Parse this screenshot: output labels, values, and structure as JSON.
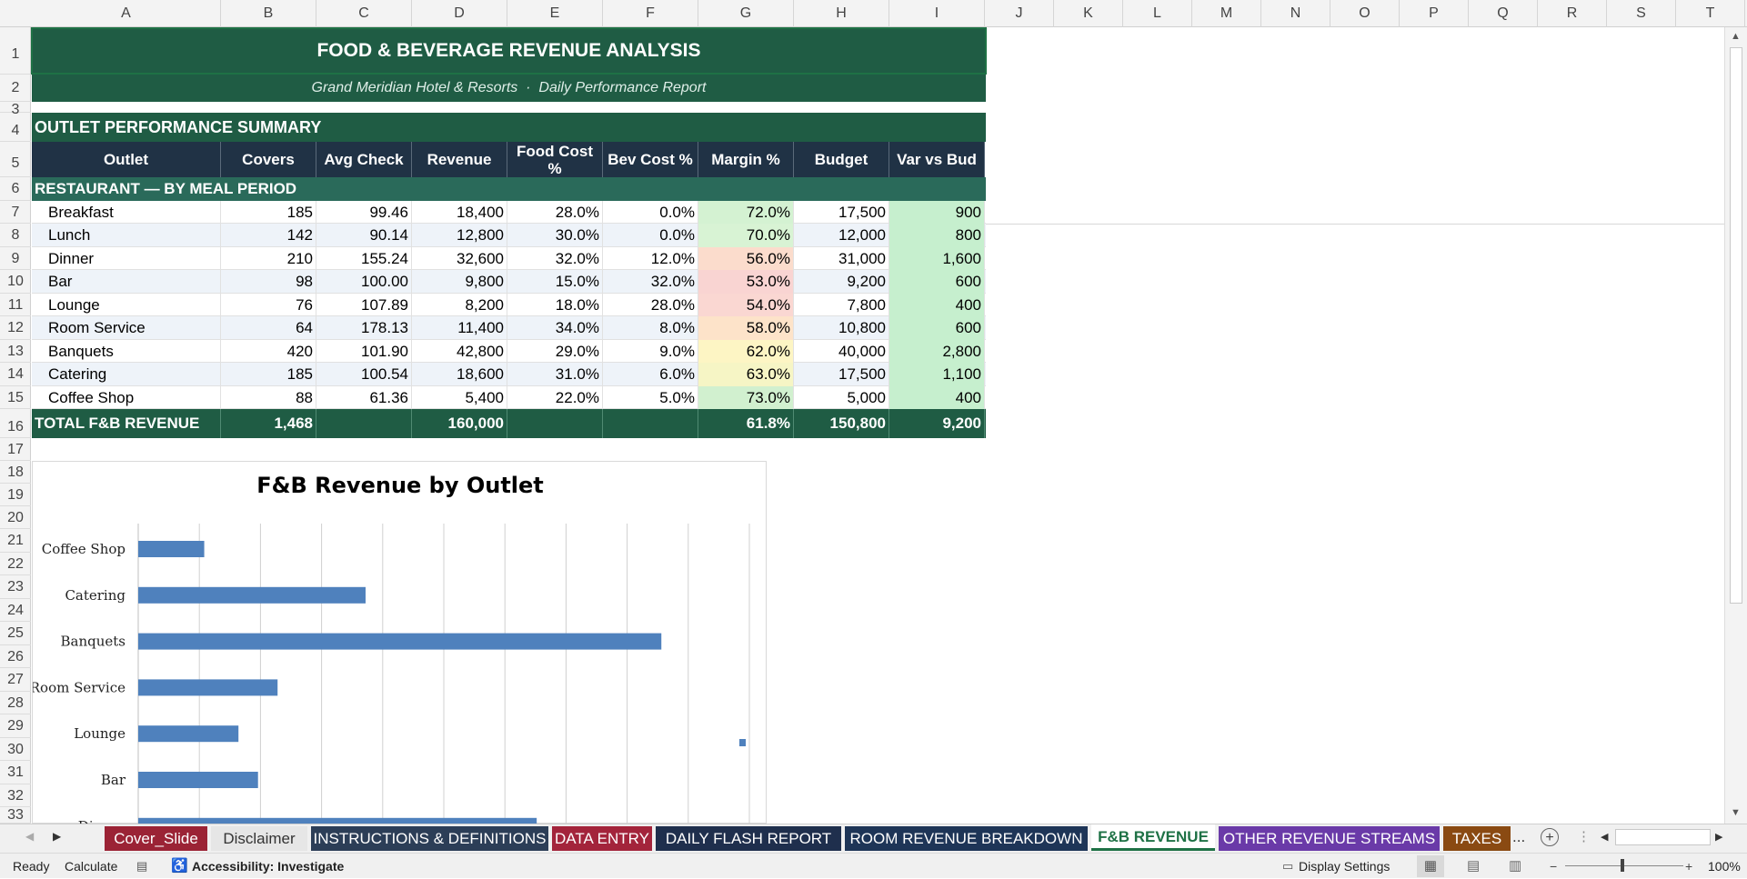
{
  "columns": [
    "A",
    "B",
    "C",
    "D",
    "E",
    "F",
    "G",
    "H",
    "I",
    "J",
    "K",
    "L",
    "M",
    "N",
    "O",
    "P",
    "Q",
    "R",
    "S",
    "T"
  ],
  "rows": [
    "1",
    "2",
    "3",
    "4",
    "5",
    "6",
    "7",
    "8",
    "9",
    "10",
    "11",
    "12",
    "13",
    "14",
    "15",
    "16",
    "17",
    "18",
    "19",
    "20",
    "21",
    "22",
    "23",
    "24",
    "25",
    "26",
    "27",
    "28",
    "29",
    "30",
    "31",
    "32",
    "33"
  ],
  "sheet": {
    "title": "FOOD & BEVERAGE REVENUE ANALYSIS",
    "subtitle": "Grand Meridian Hotel & Resorts  ·  Daily Performance Report",
    "section": "OUTLET PERFORMANCE SUMMARY",
    "headers": [
      "Outlet",
      "Covers",
      "Avg Check",
      "Revenue",
      "Food Cost %",
      "Bev Cost %",
      "Margin %",
      "Budget",
      "Var vs Bud"
    ],
    "group": "RESTAURANT — BY MEAL PERIOD",
    "data_rows": [
      {
        "outlet": "Breakfast",
        "covers": "185",
        "avg": "99.46",
        "revenue": "18,400",
        "food": "28.0%",
        "bev": "0.0%",
        "margin": "72.0%",
        "budget": "17,500",
        "var": "900",
        "margin_color": "#d4f2d2"
      },
      {
        "outlet": "Lunch",
        "covers": "142",
        "avg": "90.14",
        "revenue": "12,800",
        "food": "30.0%",
        "bev": "0.0%",
        "margin": "70.0%",
        "budget": "12,000",
        "var": "800",
        "margin_color": "#d8f3d4"
      },
      {
        "outlet": "Dinner",
        "covers": "210",
        "avg": "155.24",
        "revenue": "32,600",
        "food": "32.0%",
        "bev": "12.0%",
        "margin": "56.0%",
        "budget": "31,000",
        "var": "1,600",
        "margin_color": "#fbdccc"
      },
      {
        "outlet": "Bar",
        "covers": "98",
        "avg": "100.00",
        "revenue": "9,800",
        "food": "15.0%",
        "bev": "32.0%",
        "margin": "53.0%",
        "budget": "9,200",
        "var": "600",
        "margin_color": "#f9d4d2"
      },
      {
        "outlet": "Lounge",
        "covers": "76",
        "avg": "107.89",
        "revenue": "8,200",
        "food": "18.0%",
        "bev": "28.0%",
        "margin": "54.0%",
        "budget": "7,800",
        "var": "400",
        "margin_color": "#fad7d2"
      },
      {
        "outlet": "Room Service",
        "covers": "64",
        "avg": "178.13",
        "revenue": "11,400",
        "food": "34.0%",
        "bev": "8.0%",
        "margin": "58.0%",
        "budget": "10,800",
        "var": "600",
        "margin_color": "#fde3c9"
      },
      {
        "outlet": "Banquets",
        "covers": "420",
        "avg": "101.90",
        "revenue": "42,800",
        "food": "29.0%",
        "bev": "9.0%",
        "margin": "62.0%",
        "budget": "40,000",
        "var": "2,800",
        "margin_color": "#fdf5c4"
      },
      {
        "outlet": "Catering",
        "covers": "185",
        "avg": "100.54",
        "revenue": "18,600",
        "food": "31.0%",
        "bev": "6.0%",
        "margin": "63.0%",
        "budget": "17,500",
        "var": "1,100",
        "margin_color": "#f6f5c5"
      },
      {
        "outlet": "Coffee Shop",
        "covers": "88",
        "avg": "61.36",
        "revenue": "5,400",
        "food": "22.0%",
        "bev": "5.0%",
        "margin": "73.0%",
        "budget": "5,000",
        "var": "400",
        "margin_color": "#d1f0cf"
      }
    ],
    "total": {
      "label": "TOTAL F&B REVENUE",
      "covers": "1,468",
      "revenue": "160,000",
      "margin": "61.8%",
      "budget": "150,800",
      "var": "9,200"
    },
    "var_color": "#c6efce"
  },
  "chart_data": {
    "type": "bar",
    "orientation": "horizontal",
    "title": "F&B Revenue by Outlet",
    "categories": [
      "Coffee Shop",
      "Catering",
      "Banquets",
      "Room Service",
      "Lounge",
      "Bar",
      "Dinner"
    ],
    "values": [
      5400,
      18600,
      42800,
      11400,
      8200,
      9800,
      32600
    ],
    "xlim": [
      0,
      50000
    ],
    "grid": true,
    "color": "#4f81bd"
  },
  "tabs": [
    {
      "label": "Cover_Slide",
      "bg": "#9b2335",
      "fg": "#ffffff"
    },
    {
      "label": "Disclaimer",
      "bg": "#e6e6e6",
      "fg": "#333333"
    },
    {
      "label": "INSTRUCTIONS & DEFINITIONS",
      "bg": "#2c3e57",
      "fg": "#ffffff"
    },
    {
      "label": "DATA ENTRY",
      "bg": "#a3243b",
      "fg": "#ffffff"
    },
    {
      "label": "DAILY FLASH REPORT",
      "bg": "#1f2f4d",
      "fg": "#ffffff"
    },
    {
      "label": "ROOM REVENUE BREAKDOWN",
      "bg": "#1e3557",
      "fg": "#ffffff"
    },
    {
      "label": "F&B REVENUE",
      "bg": "#ffffff",
      "fg": "#1e7145"
    },
    {
      "label": "OTHER REVENUE STREAMS",
      "bg": "#6a3aa8",
      "fg": "#ffffff"
    },
    {
      "label": "TAXES",
      "bg": "#8a4a12",
      "fg": "#ffffff"
    }
  ],
  "tab_more": "...",
  "status": {
    "ready": "Ready",
    "calculate": "Calculate",
    "accessibility": "Accessibility: Investigate",
    "display": "Display Settings",
    "zoom": "100%"
  }
}
